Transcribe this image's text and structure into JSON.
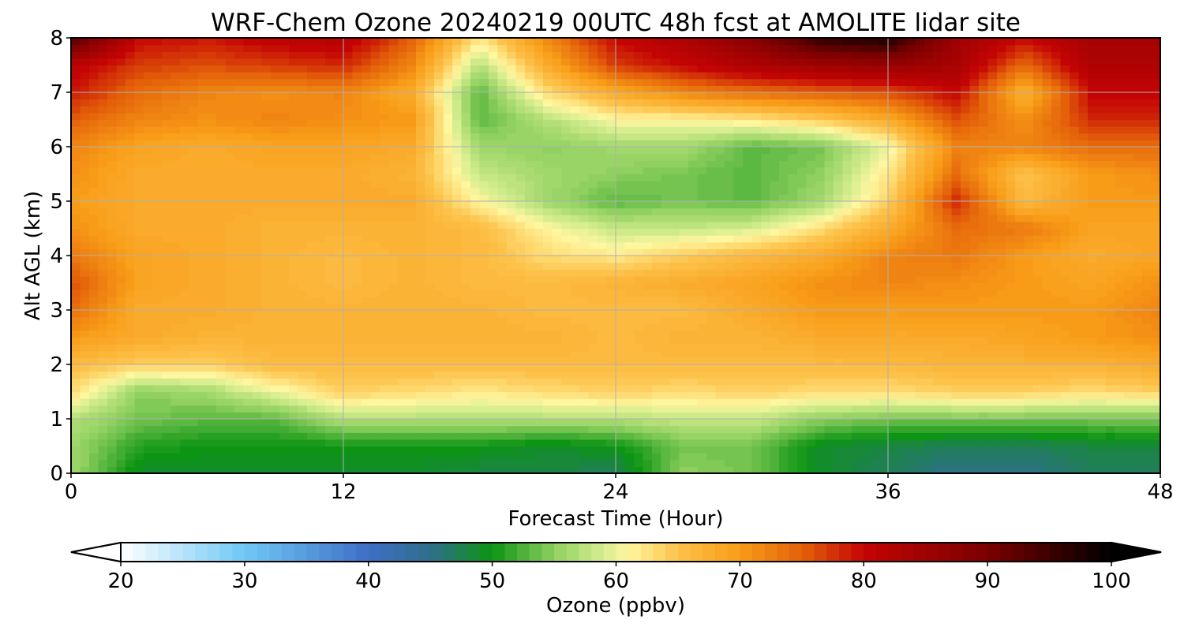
{
  "chart_data": {
    "type": "heatmap",
    "title": "WRF-Chem Ozone  20240219 00UTC 48h fcst at AMOLITE lidar site",
    "xlabel": "Forecast Time (Hour)",
    "ylabel": "Alt AGL (km)",
    "xlim": [
      0,
      48
    ],
    "ylim": [
      0,
      8
    ],
    "x_ticks": [
      0,
      12,
      24,
      36,
      48
    ],
    "y_ticks": [
      0,
      1,
      2,
      3,
      4,
      5,
      6,
      7,
      8
    ],
    "grid": true,
    "x": [
      0,
      3,
      6,
      9,
      12,
      15,
      18,
      21,
      24,
      27,
      30,
      33,
      36,
      39,
      42,
      45,
      48
    ],
    "y": [
      0,
      0.5,
      1,
      1.5,
      2,
      2.5,
      3,
      3.5,
      4,
      4.5,
      5,
      5.5,
      6,
      6.5,
      7,
      7.5,
      8
    ],
    "z_ppbv": [
      [
        56,
        49,
        49,
        49,
        49,
        49,
        48,
        48,
        47,
        55,
        54,
        49,
        47,
        45,
        45,
        47,
        47
      ],
      [
        56,
        51,
        50,
        50,
        50,
        50,
        50,
        49,
        50,
        54,
        54,
        49,
        48,
        47,
        47,
        48,
        48
      ],
      [
        57,
        54,
        53,
        53,
        57,
        57,
        57,
        57,
        57,
        58,
        58,
        55,
        54,
        54,
        54,
        54,
        54
      ],
      [
        63,
        55,
        56,
        60,
        64,
        63,
        62,
        63,
        64,
        63,
        64,
        63,
        63,
        64,
        64,
        63,
        64
      ],
      [
        66,
        64,
        64,
        66,
        66,
        66,
        66,
        66,
        66,
        66,
        66,
        66,
        66,
        67,
        67,
        67,
        68
      ],
      [
        70,
        68,
        67,
        67,
        67,
        67,
        67,
        67,
        66,
        67,
        67,
        68,
        68,
        68,
        69,
        70,
        71
      ],
      [
        74,
        68,
        68,
        67,
        67,
        67,
        67,
        66,
        66,
        66,
        68,
        70,
        70,
        70,
        70,
        70,
        72
      ],
      [
        76,
        69,
        68,
        67,
        66,
        67,
        66,
        66,
        67,
        68,
        69,
        71,
        72,
        71,
        70,
        69,
        71
      ],
      [
        73,
        69,
        68,
        67,
        66,
        67,
        66,
        63,
        62,
        64,
        66,
        68,
        72,
        73,
        70,
        68,
        69
      ],
      [
        71,
        68,
        68,
        67,
        67,
        67,
        66,
        61,
        58,
        58,
        59,
        63,
        68,
        74,
        73,
        69,
        69
      ],
      [
        70,
        68,
        68,
        68,
        68,
        68,
        61,
        56,
        53,
        54,
        53,
        56,
        64,
        78,
        66,
        70,
        70
      ],
      [
        71,
        68,
        68,
        68,
        68,
        67,
        58,
        56,
        55,
        54,
        53,
        55,
        62,
        74,
        65,
        70,
        71
      ],
      [
        72,
        69,
        68,
        69,
        69,
        68,
        56,
        55,
        56,
        56,
        53,
        54,
        60,
        72,
        72,
        74,
        74
      ],
      [
        75,
        72,
        71,
        72,
        71,
        70,
        53,
        57,
        61,
        61,
        62,
        64,
        68,
        76,
        71,
        78,
        78
      ],
      [
        79,
        74,
        72,
        71,
        72,
        68,
        53,
        63,
        68,
        72,
        74,
        75,
        76,
        80,
        67,
        80,
        80
      ],
      [
        81,
        77,
        76,
        77,
        78,
        72,
        57,
        68,
        77,
        80,
        83,
        85,
        86,
        84,
        74,
        83,
        83
      ],
      [
        94,
        80,
        79,
        81,
        82,
        75,
        62,
        72,
        80,
        83,
        88,
        96,
        98,
        85,
        80,
        84,
        84
      ]
    ],
    "colorbar": {
      "label": "Ozone  (ppbv)",
      "min": 20,
      "max": 100,
      "ticks": [
        20,
        30,
        40,
        50,
        60,
        70,
        80,
        90,
        100
      ],
      "extend": "both",
      "stops": [
        {
          "v": 20,
          "c": "#ffffff"
        },
        {
          "v": 30,
          "c": "#6fc8f5"
        },
        {
          "v": 40,
          "c": "#3e6fc6"
        },
        {
          "v": 45,
          "c": "#2f6e8c"
        },
        {
          "v": 50,
          "c": "#0c9413"
        },
        {
          "v": 55,
          "c": "#8fd060"
        },
        {
          "v": 59,
          "c": "#d8ee90"
        },
        {
          "v": 61,
          "c": "#fff6a0"
        },
        {
          "v": 65,
          "c": "#fdc24a"
        },
        {
          "v": 70,
          "c": "#f89c18"
        },
        {
          "v": 75,
          "c": "#e4610a"
        },
        {
          "v": 80,
          "c": "#c40404"
        },
        {
          "v": 90,
          "c": "#7a0000"
        },
        {
          "v": 100,
          "c": "#000000"
        }
      ]
    }
  }
}
